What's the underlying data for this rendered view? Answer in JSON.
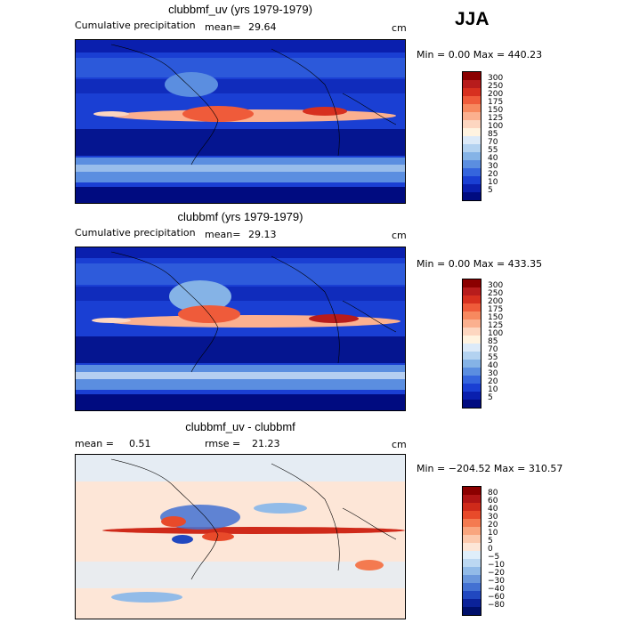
{
  "season": "JJA",
  "panels": [
    {
      "title": "clubbmf_uv (yrs 1979-1979)",
      "subtitle": "Cumulative precipitation",
      "mean_label": "mean=",
      "mean_value": "29.64",
      "units": "cm",
      "minmax": "Min =    0.00 Max = 440.23",
      "colorbar": {
        "labels": [
          "300",
          "250",
          "200",
          "175",
          "150",
          "125",
          "100",
          "85",
          "70",
          "55",
          "40",
          "30",
          "20",
          "10",
          "5"
        ],
        "colors": [
          "#8b0000",
          "#b71c1c",
          "#d7301f",
          "#ef5b3a",
          "#f7895f",
          "#fbb08f",
          "#fdd6c0",
          "#fff3e0",
          "#dceaf8",
          "#b3d2f0",
          "#85b3e6",
          "#5b8ee0",
          "#3565dd",
          "#1a3fd3",
          "#0a1fae",
          "#000b80"
        ]
      }
    },
    {
      "title": "clubbmf (yrs 1979-1979)",
      "subtitle": "Cumulative precipitation",
      "mean_label": "mean=",
      "mean_value": "29.13",
      "units": "cm",
      "minmax": "Min =    0.00 Max = 433.35",
      "colorbar": {
        "labels": [
          "300",
          "250",
          "200",
          "175",
          "150",
          "125",
          "100",
          "85",
          "70",
          "55",
          "40",
          "30",
          "20",
          "10",
          "5"
        ],
        "colors": [
          "#8b0000",
          "#b71c1c",
          "#d7301f",
          "#ef5b3a",
          "#f7895f",
          "#fbb08f",
          "#fdd6c0",
          "#fff3e0",
          "#dceaf8",
          "#b3d2f0",
          "#85b3e6",
          "#5b8ee0",
          "#3565dd",
          "#1a3fd3",
          "#0a1fae",
          "#000b80"
        ]
      }
    },
    {
      "title": "clubbmf_uv - clubbmf",
      "mean_label": "mean =",
      "mean_value": "0.51",
      "rmse_label": "rmse =",
      "rmse_value": "21.23",
      "units": "cm",
      "minmax": "Min = −204.52 Max = 310.57",
      "colorbar": {
        "labels": [
          "80",
          "60",
          "40",
          "30",
          "20",
          "10",
          "5",
          "0",
          "−5",
          "−10",
          "−20",
          "−30",
          "−40",
          "−60",
          "−80"
        ],
        "colors": [
          "#8b0000",
          "#b01515",
          "#cf2a1a",
          "#e84a2a",
          "#f47a50",
          "#f9a57e",
          "#fcc9ad",
          "#fde6d7",
          "#dfeefa",
          "#bcd8f2",
          "#92bbe8",
          "#6a97dc",
          "#4371d2",
          "#2148c0",
          "#0b2299",
          "#00106b"
        ]
      }
    }
  ],
  "chart_data": [
    {
      "type": "heatmap",
      "title": "clubbmf_uv (yrs 1979-1979)",
      "field": "Cumulative precipitation",
      "units": "cm",
      "mean": 29.64,
      "min": 0.0,
      "max": 440.23,
      "levels": [
        5,
        10,
        20,
        30,
        40,
        55,
        70,
        85,
        100,
        125,
        150,
        175,
        200,
        250,
        300
      ]
    },
    {
      "type": "heatmap",
      "title": "clubbmf (yrs 1979-1979)",
      "field": "Cumulative precipitation",
      "units": "cm",
      "mean": 29.13,
      "min": 0.0,
      "max": 433.35,
      "levels": [
        5,
        10,
        20,
        30,
        40,
        55,
        70,
        85,
        100,
        125,
        150,
        175,
        200,
        250,
        300
      ]
    },
    {
      "type": "heatmap",
      "title": "clubbmf_uv - clubbmf",
      "units": "cm",
      "mean": 0.51,
      "rmse": 21.23,
      "min": -204.52,
      "max": 310.57,
      "levels": [
        -80,
        -60,
        -40,
        -30,
        -20,
        -10,
        -5,
        0,
        5,
        10,
        20,
        30,
        40,
        60,
        80
      ]
    }
  ]
}
